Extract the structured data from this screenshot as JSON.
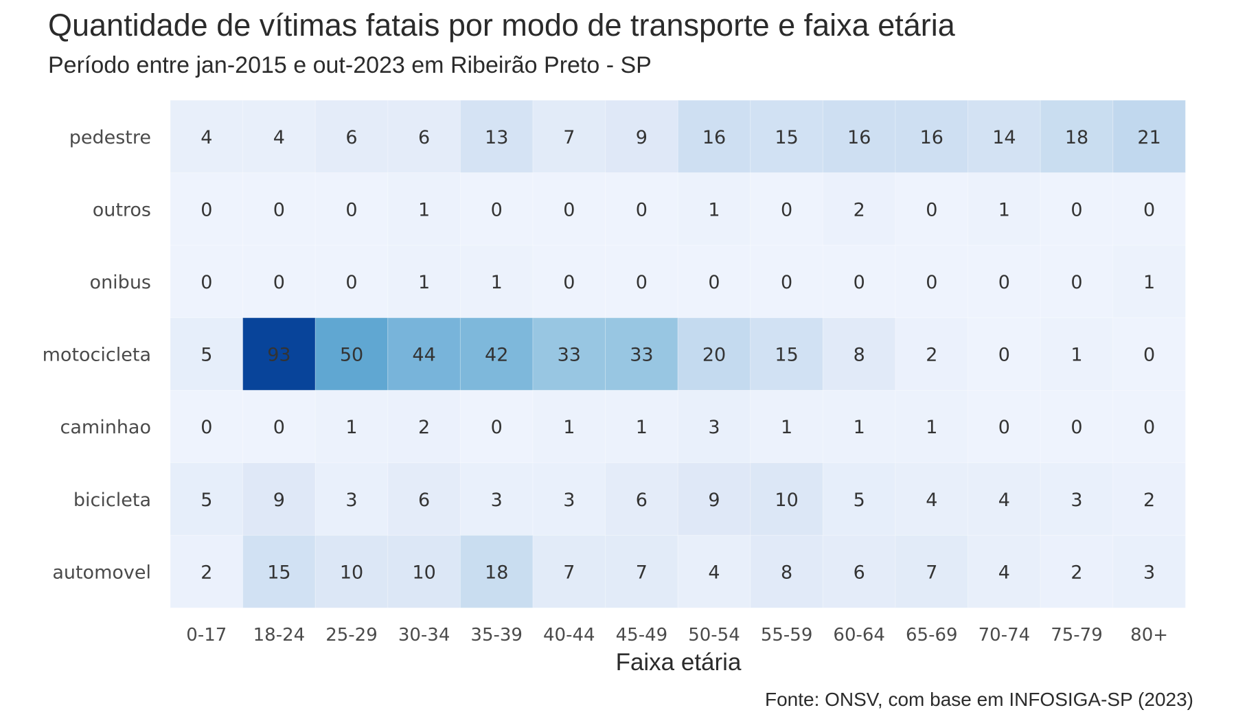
{
  "chart_data": {
    "type": "heatmap",
    "title": "Quantidade de vítimas fatais por modo de transporte e faixa etária",
    "subtitle": "Período entre jan-2015 e out-2023 em Ribeirão Preto - SP",
    "xlabel": "Faixa etária",
    "ylabel": "",
    "caption": "Fonte: ONSV, com base em INFOSIGA-SP (2023)",
    "x": [
      "0-17",
      "18-24",
      "25-29",
      "30-34",
      "35-39",
      "40-44",
      "45-49",
      "50-54",
      "55-59",
      "60-64",
      "65-69",
      "70-74",
      "75-79",
      "80+"
    ],
    "y": [
      "pedestre",
      "outros",
      "onibus",
      "motocicleta",
      "caminhao",
      "bicicleta",
      "automovel"
    ],
    "values": [
      [
        4,
        4,
        6,
        6,
        13,
        7,
        9,
        16,
        15,
        16,
        16,
        14,
        18,
        21
      ],
      [
        0,
        0,
        0,
        1,
        0,
        0,
        0,
        1,
        0,
        2,
        0,
        1,
        0,
        0
      ],
      [
        0,
        0,
        0,
        1,
        1,
        0,
        0,
        0,
        0,
        0,
        0,
        0,
        0,
        1
      ],
      [
        5,
        93,
        50,
        44,
        42,
        33,
        33,
        20,
        15,
        8,
        2,
        0,
        1,
        0
      ],
      [
        0,
        0,
        1,
        2,
        0,
        1,
        1,
        3,
        1,
        1,
        1,
        0,
        0,
        0
      ],
      [
        5,
        9,
        3,
        6,
        3,
        3,
        6,
        9,
        10,
        5,
        4,
        4,
        3,
        2
      ],
      [
        2,
        15,
        10,
        10,
        18,
        7,
        7,
        4,
        8,
        6,
        7,
        4,
        2,
        3
      ]
    ],
    "color_scale": "Blues",
    "color_min": "#eef3fd",
    "color_max": "#08449a",
    "grid": false,
    "legend": "none"
  }
}
